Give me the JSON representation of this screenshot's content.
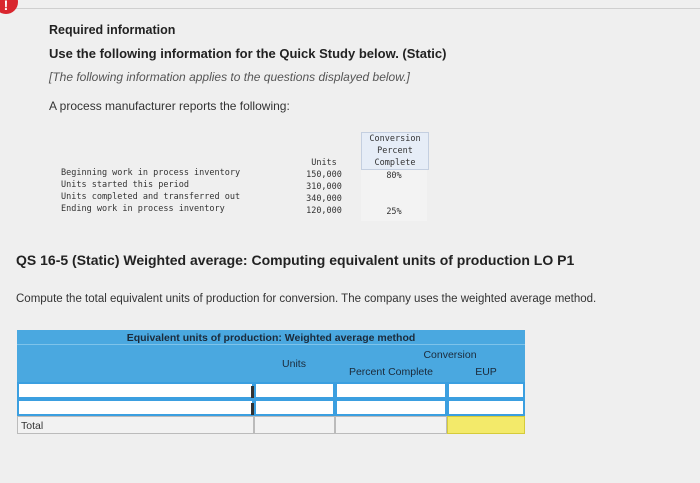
{
  "alert_icon": "!",
  "required": {
    "title": "Required information",
    "subtitle": "Use the following information for the Quick Study below. (Static)",
    "note": "[The following information applies to the questions displayed below.]",
    "intro": "A process manufacturer reports the following:"
  },
  "info_table": {
    "units_header": "Units",
    "conversion_header": [
      "Conversion",
      "Percent",
      "Complete"
    ],
    "rows": [
      {
        "label": "Beginning work in process inventory",
        "units": "150,000",
        "pct": "80%"
      },
      {
        "label": "Units started this period",
        "units": "310,000",
        "pct": ""
      },
      {
        "label": "Units completed and transferred out",
        "units": "340,000",
        "pct": ""
      },
      {
        "label": "Ending work in process inventory",
        "units": "120,000",
        "pct": "25%"
      }
    ]
  },
  "question": {
    "title": "QS 16-5 (Static) Weighted average: Computing equivalent units of production LO P1",
    "description": "Compute the total equivalent units of production for conversion. The company uses the weighted average method."
  },
  "eup_table": {
    "title": "Equivalent units of production: Weighted average method",
    "units_header": "Units",
    "conversion_header": "Conversion",
    "percent_header": "Percent Complete",
    "eup_header": "EUP",
    "total_label": "Total"
  }
}
